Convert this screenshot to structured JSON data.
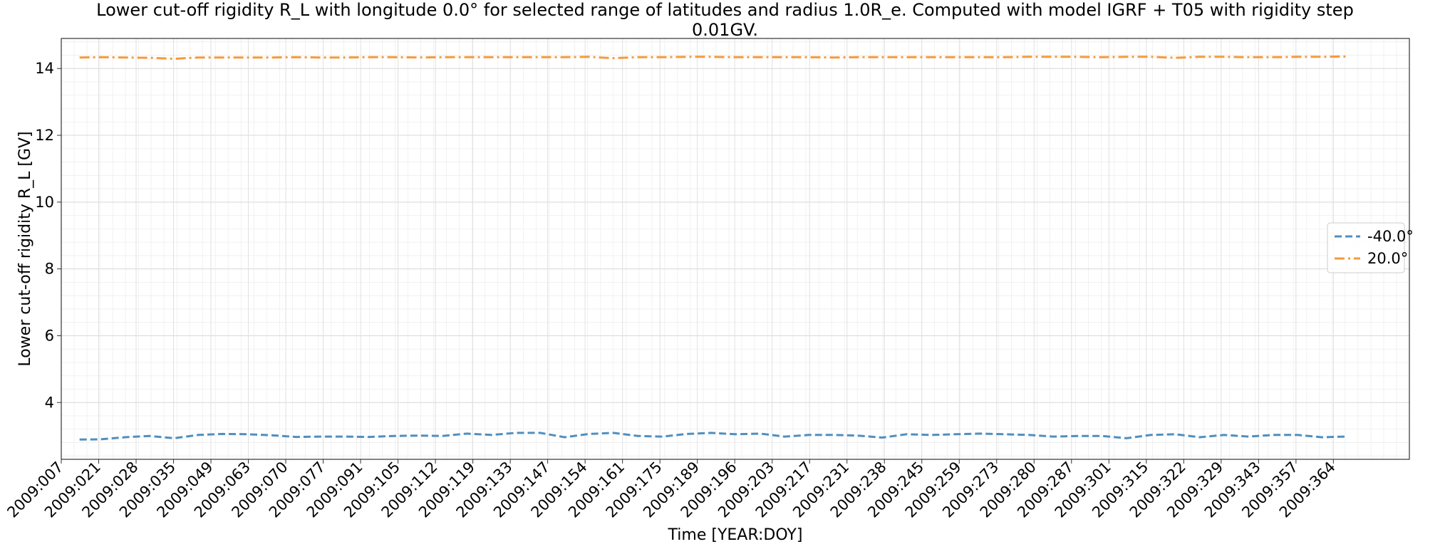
{
  "chart_data": {
    "type": "line",
    "title_line1": "Lower cut-off rigidity R_L with longitude 0.0° for selected range of latitudes and radius 1.0R_e. Computed with model IGRF + T05 with rigidity step",
    "title_line2": "0.01GV.",
    "xlabel": "Time [YEAR:DOY]",
    "ylabel": "Lower cut-off rigidity R_L [GV]",
    "ylim": [
      2.3,
      14.9
    ],
    "yticks": [
      4,
      6,
      8,
      10,
      12,
      14
    ],
    "xlim": [
      -4,
      359
    ],
    "xtick_labels": [
      "2009:007",
      "2009:021",
      "2009:028",
      "2009:035",
      "2009:049",
      "2009:063",
      "2009:070",
      "2009:077",
      "2009:091",
      "2009:105",
      "2009:112",
      "2009:119",
      "2009:133",
      "2009:147",
      "2009:154",
      "2009:161",
      "2009:175",
      "2009:189",
      "2009:196",
      "2009:203",
      "2009:217",
      "2009:231",
      "2009:238",
      "2009:245",
      "2009:259",
      "2009:273",
      "2009:280",
      "2009:287",
      "2009:301",
      "2009:315",
      "2009:322",
      "2009:329",
      "2009:343",
      "2009:357",
      "2009:364"
    ],
    "grid": true,
    "legend_position": "center-right",
    "x": [
      1,
      7,
      14,
      21,
      28,
      35,
      42,
      49,
      56,
      63,
      70,
      77,
      84,
      91,
      98,
      105,
      112,
      119,
      126,
      133,
      140,
      147,
      154,
      161,
      168,
      175,
      182,
      189,
      196,
      203,
      210,
      217,
      224,
      231,
      238,
      245,
      252,
      259,
      266,
      273,
      280,
      287,
      294,
      301,
      308,
      315,
      322,
      329,
      336,
      343,
      350,
      357,
      364
    ],
    "series": [
      {
        "name": "-40.0°",
        "color": "#4f8fc0",
        "dash": "dashed",
        "values": [
          2.89,
          2.9,
          2.96,
          3.0,
          2.93,
          3.03,
          3.06,
          3.05,
          3.02,
          2.97,
          2.98,
          2.98,
          2.97,
          3.0,
          3.01,
          3.0,
          3.07,
          3.03,
          3.09,
          3.09,
          2.96,
          3.06,
          3.09,
          3.0,
          2.98,
          3.06,
          3.09,
          3.05,
          3.07,
          2.98,
          3.03,
          3.03,
          3.01,
          2.95,
          3.05,
          3.03,
          3.05,
          3.07,
          3.05,
          3.03,
          2.98,
          3.0,
          3.0,
          2.93,
          3.03,
          3.05,
          2.96,
          3.03,
          2.98,
          3.03,
          3.03,
          2.96,
          2.98
        ]
      },
      {
        "name": "20.0°",
        "color": "#f59a3c",
        "dash": "dashdot",
        "values": [
          14.33,
          14.34,
          14.33,
          14.32,
          14.29,
          14.33,
          14.33,
          14.33,
          14.33,
          14.34,
          14.33,
          14.33,
          14.34,
          14.34,
          14.33,
          14.34,
          14.34,
          14.34,
          14.34,
          14.34,
          14.34,
          14.35,
          14.31,
          14.34,
          14.34,
          14.35,
          14.35,
          14.34,
          14.34,
          14.34,
          14.34,
          14.33,
          14.34,
          14.34,
          14.34,
          14.34,
          14.34,
          14.34,
          14.34,
          14.35,
          14.35,
          14.35,
          14.34,
          14.35,
          14.35,
          14.32,
          14.35,
          14.35,
          14.34,
          14.34,
          14.35,
          14.35,
          14.36
        ]
      }
    ]
  }
}
